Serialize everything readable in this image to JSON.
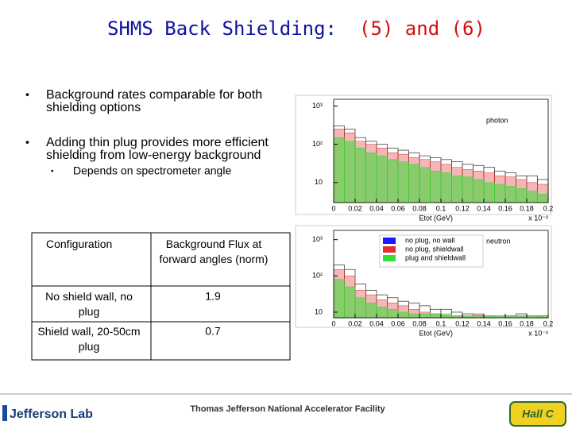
{
  "title": "SHMS Back Shielding:",
  "title_highlight": "(5) and (6)",
  "bullets": [
    {
      "text": "Background rates comparable for both shielding options"
    },
    {
      "text": "Adding thin plug provides more efficient shielding from low-energy background",
      "sub": [
        "Depends on spectrometer angle"
      ]
    }
  ],
  "table": {
    "header": [
      "Configuration",
      "Background Flux at forward angles (norm)"
    ],
    "rows": [
      [
        "No shield wall, no plug",
        "1.9"
      ],
      [
        "Shield wall, 20-50cm plug",
        "0.7"
      ]
    ]
  },
  "plots": [
    {
      "type": "histogram",
      "label": "photon",
      "legend": false,
      "log": true,
      "bins": [
        0,
        0.01,
        0.02,
        0.03,
        0.04,
        0.05,
        0.06,
        0.07,
        0.08,
        0.09,
        0.1,
        0.11,
        0.12,
        0.13,
        0.14,
        0.15,
        0.16,
        0.17,
        0.18,
        0.19,
        0.2
      ],
      "xlim": [
        0,
        0.2
      ],
      "xticks": [
        0,
        0.02,
        0.04,
        0.06,
        0.08,
        0.1,
        0.12,
        0.14,
        0.16,
        0.18,
        0.2
      ],
      "ylim": [
        3,
        1500
      ],
      "yticks": [
        {
          "value": 10,
          "label": "10"
        },
        {
          "value": 100,
          "label": "10²"
        },
        {
          "value": 1000,
          "label": "10³"
        }
      ],
      "xlabel": "Etot (GeV)",
      "xscale": "x 10⁻²",
      "series": [
        {
          "name": "no plug, no wall",
          "color": "#1a1aff",
          "values": [
            300,
            250,
            150,
            120,
            100,
            80,
            70,
            60,
            50,
            45,
            40,
            35,
            30,
            28,
            25,
            20,
            18,
            15,
            15,
            12
          ]
        },
        {
          "name": "no plug, shieldwall",
          "color": "#e03030",
          "values": [
            250,
            200,
            120,
            100,
            80,
            60,
            55,
            45,
            40,
            35,
            30,
            25,
            22,
            20,
            18,
            15,
            14,
            12,
            10,
            9
          ]
        },
        {
          "name": "plug and shieldwall",
          "color": "#33dd33",
          "values": [
            150,
            120,
            80,
            60,
            50,
            40,
            35,
            30,
            25,
            20,
            18,
            15,
            14,
            12,
            10,
            9,
            8,
            7,
            6,
            5
          ]
        }
      ]
    },
    {
      "type": "histogram",
      "label": "neutron",
      "legend": true,
      "log": true,
      "bins": [
        0,
        0.01,
        0.02,
        0.03,
        0.04,
        0.05,
        0.06,
        0.07,
        0.08,
        0.09,
        0.1,
        0.11,
        0.12,
        0.13,
        0.14,
        0.15,
        0.16,
        0.17,
        0.18,
        0.19,
        0.2
      ],
      "xlim": [
        0,
        0.2
      ],
      "xticks": [
        0,
        0.02,
        0.04,
        0.06,
        0.08,
        0.1,
        0.12,
        0.14,
        0.16,
        0.18,
        0.2
      ],
      "ylim": [
        7,
        1800
      ],
      "yticks": [
        {
          "value": 10,
          "label": "10"
        },
        {
          "value": 100,
          "label": "10²"
        },
        {
          "value": 1000,
          "label": "10³"
        }
      ],
      "xlabel": "Etot (GeV)",
      "xscale": "x 10⁻²",
      "series": [
        {
          "name": "no plug, no wall",
          "color": "#1a1aff",
          "values": [
            200,
            150,
            60,
            40,
            30,
            25,
            20,
            18,
            15,
            12,
            12,
            10,
            9,
            8,
            8,
            7,
            8,
            9,
            8,
            8
          ]
        },
        {
          "name": "no plug, shieldwall",
          "color": "#e03030",
          "values": [
            150,
            100,
            40,
            30,
            22,
            18,
            15,
            12,
            10,
            9,
            8,
            8,
            8,
            9,
            8,
            8,
            8,
            8,
            8,
            8
          ]
        },
        {
          "name": "plug and shieldwall",
          "color": "#33dd33",
          "values": [
            80,
            50,
            25,
            18,
            14,
            12,
            10,
            9,
            9,
            9,
            9,
            8,
            8,
            8,
            8,
            8,
            8,
            8,
            8,
            8
          ]
        }
      ]
    }
  ],
  "footer": {
    "logo": "Jefferson Lab",
    "center": "Thomas Jefferson National Accelerator Facility",
    "right": "Hall C"
  }
}
